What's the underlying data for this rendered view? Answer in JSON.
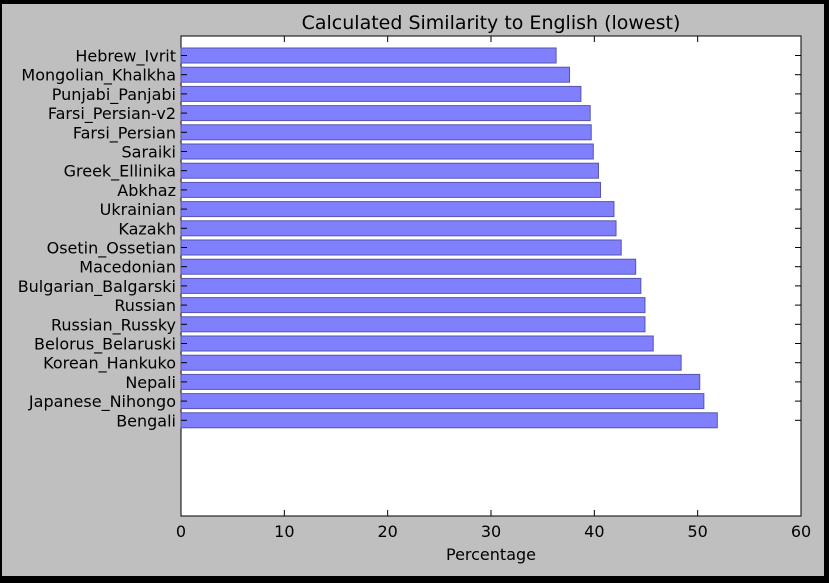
{
  "colors": {
    "background": "#bfbfbf",
    "plot_area": "#ffffff",
    "bar_fill": "#8080ff",
    "bar_edge": "#5555aa",
    "frame": "#000000"
  },
  "chart_data": {
    "type": "bar",
    "orientation": "horizontal",
    "title": "Calculated Similarity to English (lowest)",
    "xlabel": "Percentage",
    "ylabel": "",
    "xlim": [
      0,
      60
    ],
    "xticks": [
      "0",
      "10",
      "20",
      "30",
      "40",
      "50",
      "60"
    ],
    "grid": false,
    "categories": [
      "Hebrew_Ivrit",
      "Mongolian_Khalkha",
      "Punjabi_Panjabi",
      "Farsi_Persian-v2",
      "Farsi_Persian",
      "Saraiki",
      "Greek_Ellinika",
      "Abkhaz",
      "Ukrainian",
      "Kazakh",
      "Osetin_Ossetian",
      "Macedonian",
      "Bulgarian_Balgarski",
      "Russian",
      "Russian_Russky",
      "Belorus_Belaruski",
      "Korean_Hankuko",
      "Nepali",
      "Japanese_Nihongo",
      "Bengali"
    ],
    "values": [
      36.3,
      37.6,
      38.7,
      39.6,
      39.7,
      39.9,
      40.4,
      40.6,
      41.9,
      42.1,
      42.6,
      44.0,
      44.5,
      44.9,
      44.9,
      45.7,
      48.4,
      50.2,
      50.6,
      51.9
    ]
  }
}
